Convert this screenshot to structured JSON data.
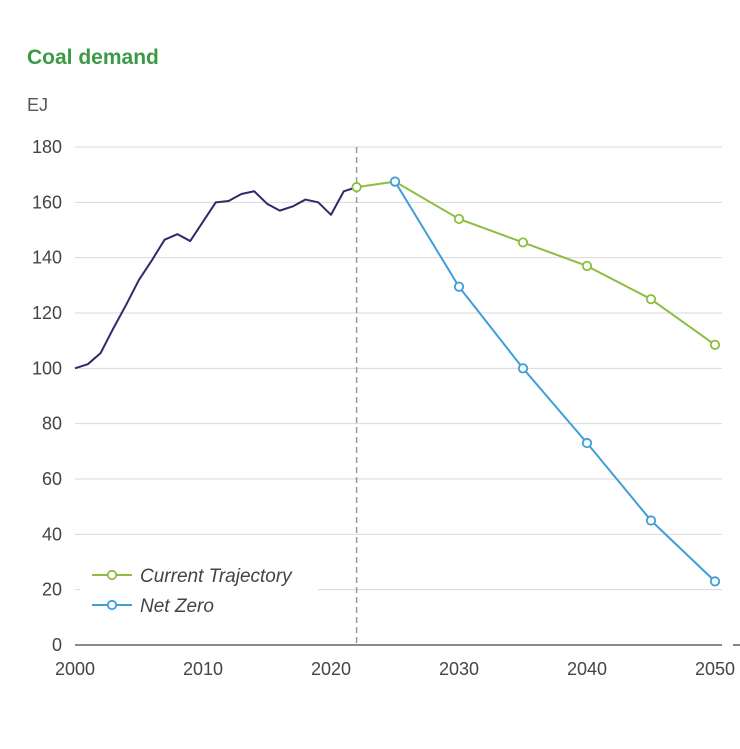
{
  "chart_data": {
    "type": "line",
    "title": "Coal demand",
    "ylabel": "EJ",
    "xlabel": "",
    "xlim": [
      2000,
      2050
    ],
    "ylim": [
      0,
      180
    ],
    "x_ticks": [
      "2000",
      "2010",
      "2020",
      "2030",
      "2040",
      "2050"
    ],
    "y_ticks": [
      "0",
      "20",
      "40",
      "60",
      "80",
      "100",
      "120",
      "140",
      "160",
      "180"
    ],
    "grid": "horizontal",
    "legend_position": "bottom-left",
    "reference_line_x": 2022,
    "historical": {
      "color": "#2e2a6b",
      "x": [
        2000,
        2001,
        2002,
        2003,
        2004,
        2005,
        2006,
        2007,
        2008,
        2009,
        2010,
        2011,
        2012,
        2013,
        2014,
        2015,
        2016,
        2017,
        2018,
        2019,
        2020,
        2021,
        2022
      ],
      "y": [
        100,
        101.5,
        105.5,
        114.5,
        123,
        132,
        139,
        146.5,
        148.5,
        146,
        153,
        160,
        160.5,
        163,
        164,
        159.5,
        157,
        158.5,
        161,
        160,
        155.5,
        164,
        165.5
      ]
    },
    "series": [
      {
        "name": "Current Trajectory",
        "color": "#8dbd3f",
        "x": [
          2022,
          2025,
          2030,
          2035,
          2040,
          2045,
          2050
        ],
        "y": [
          165.5,
          167.5,
          154,
          145.5,
          137,
          125,
          108.5
        ]
      },
      {
        "name": "Net Zero",
        "color": "#3f9ed8",
        "x": [
          2025,
          2030,
          2035,
          2040,
          2045,
          2050
        ],
        "y": [
          167.5,
          129.5,
          100,
          73,
          45,
          23
        ]
      }
    ]
  }
}
